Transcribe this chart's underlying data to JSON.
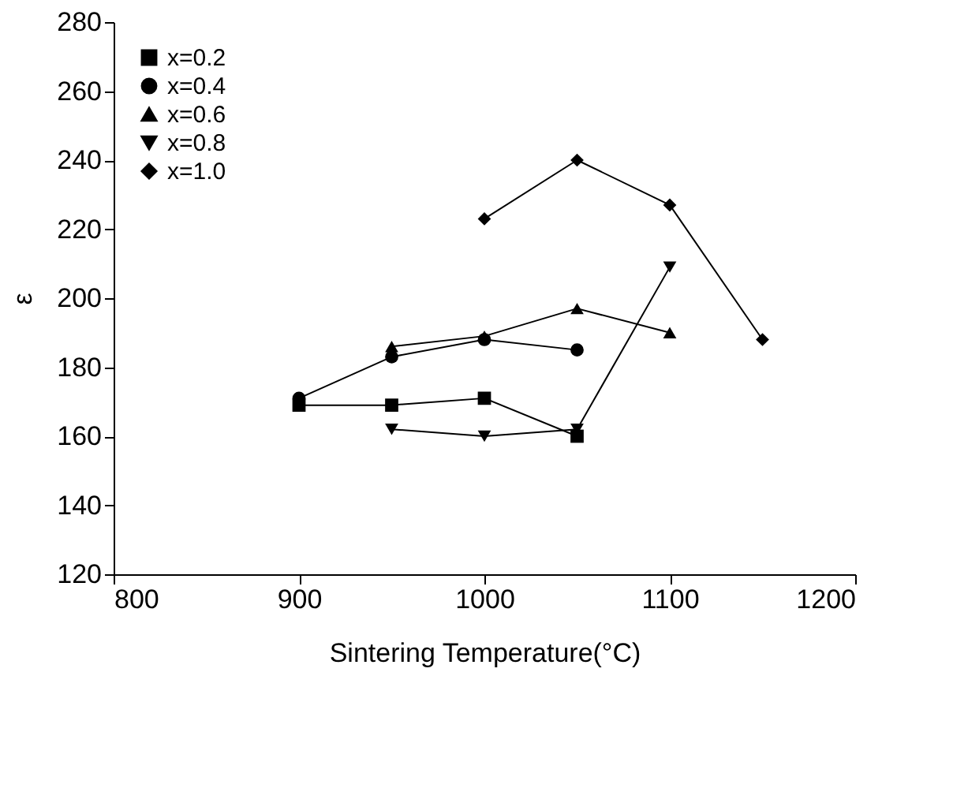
{
  "chart_data": {
    "type": "line",
    "xlabel": "Sintering Temperature(°C)",
    "ylabel": "ε",
    "xlim": [
      800,
      1200
    ],
    "xticks": [
      800,
      900,
      1000,
      1100,
      1200
    ],
    "ylim": [
      120,
      280
    ],
    "yticks": [
      120,
      140,
      160,
      180,
      200,
      220,
      240,
      260,
      280
    ],
    "grid": false,
    "legend": "top left",
    "series": [
      {
        "name": "x=0.2",
        "color": "#000000",
        "marker": "square",
        "x": [
          900,
          950,
          1000,
          1050
        ],
        "values": [
          169,
          169,
          171,
          160
        ]
      },
      {
        "name": "x=0.4",
        "color": "#000000",
        "marker": "circle",
        "x": [
          900,
          950,
          1000,
          1050
        ],
        "values": [
          171,
          183,
          188,
          185
        ]
      },
      {
        "name": "x=0.6",
        "color": "#000000",
        "marker": "triangle",
        "x": [
          950,
          1000,
          1050,
          1100
        ],
        "values": [
          186,
          189,
          197,
          190
        ]
      },
      {
        "name": "x=0.8",
        "color": "#000000",
        "marker": "triangle-down",
        "x": [
          950,
          1000,
          1050,
          1100
        ],
        "values": [
          162,
          160,
          162,
          209
        ]
      },
      {
        "name": "x=1.0",
        "color": "#000000",
        "marker": "diamond",
        "x": [
          1000,
          1050,
          1100,
          1150
        ],
        "values": [
          223,
          240,
          227,
          188
        ]
      }
    ]
  }
}
